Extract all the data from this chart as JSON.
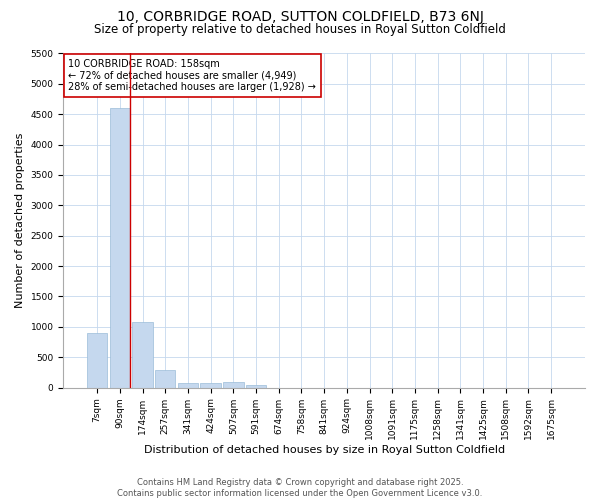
{
  "title": "10, CORBRIDGE ROAD, SUTTON COLDFIELD, B73 6NJ",
  "subtitle": "Size of property relative to detached houses in Royal Sutton Coldfield",
  "xlabel": "Distribution of detached houses by size in Royal Sutton Coldfield",
  "ylabel": "Number of detached properties",
  "categories": [
    "7sqm",
    "90sqm",
    "174sqm",
    "257sqm",
    "341sqm",
    "424sqm",
    "507sqm",
    "591sqm",
    "674sqm",
    "758sqm",
    "841sqm",
    "924sqm",
    "1008sqm",
    "1091sqm",
    "1175sqm",
    "1258sqm",
    "1341sqm",
    "1425sqm",
    "1508sqm",
    "1592sqm",
    "1675sqm"
  ],
  "values": [
    900,
    4600,
    1080,
    290,
    80,
    80,
    100,
    50,
    0,
    0,
    0,
    0,
    0,
    0,
    0,
    0,
    0,
    0,
    0,
    0,
    0
  ],
  "bar_color": "#c5d8ee",
  "bar_edgecolor": "#9bbdd8",
  "grid_color": "#c5d8ee",
  "plot_bg_color": "#ffffff",
  "fig_bg_color": "#ffffff",
  "marker_line_color": "#cc0000",
  "annotation_text": "10 CORBRIDGE ROAD: 158sqm\n← 72% of detached houses are smaller (4,949)\n28% of semi-detached houses are larger (1,928) →",
  "annotation_box_facecolor": "#ffffff",
  "annotation_box_edgecolor": "#cc0000",
  "ylim": [
    0,
    5500
  ],
  "yticks": [
    0,
    500,
    1000,
    1500,
    2000,
    2500,
    3000,
    3500,
    4000,
    4500,
    5000,
    5500
  ],
  "footer1": "Contains HM Land Registry data © Crown copyright and database right 2025.",
  "footer2": "Contains public sector information licensed under the Open Government Licence v3.0.",
  "title_fontsize": 10,
  "subtitle_fontsize": 8.5,
  "axis_label_fontsize": 8,
  "tick_fontsize": 6.5,
  "annotation_fontsize": 7,
  "footer_fontsize": 6
}
